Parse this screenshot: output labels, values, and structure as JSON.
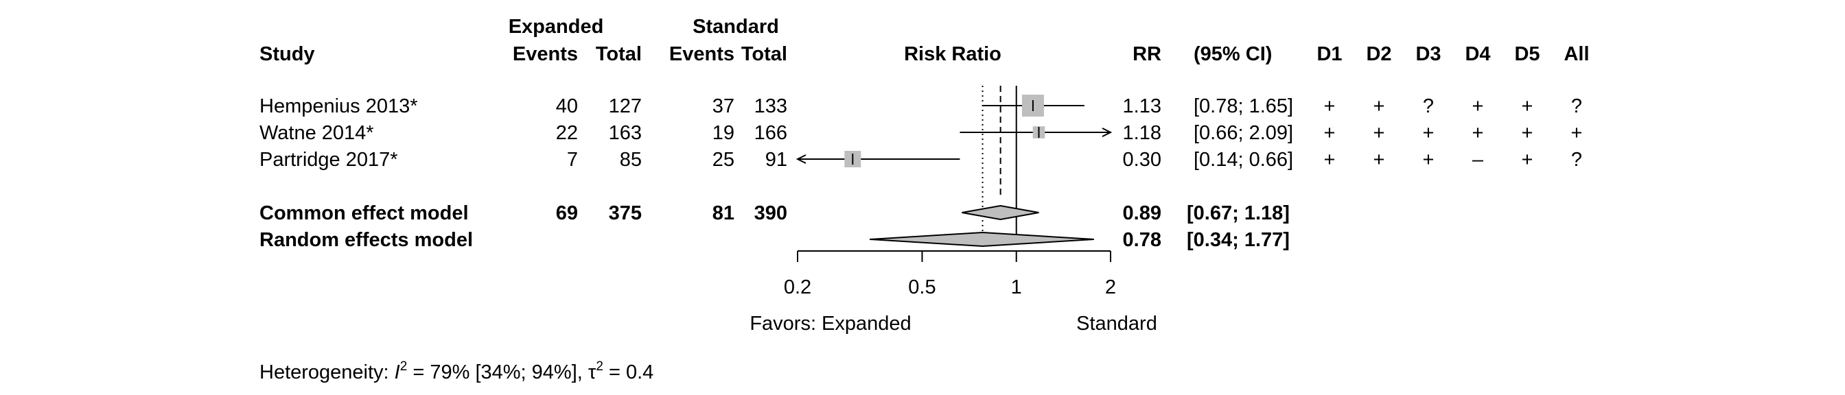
{
  "chart_data": {
    "type": "forest",
    "headers": {
      "study": "Study",
      "group1": "Expanded",
      "group2": "Standard",
      "events": "Events",
      "total": "Total",
      "plot": "Risk Ratio",
      "rr": "RR",
      "ci": "(95% CI)",
      "rob": [
        "D1",
        "D2",
        "D3",
        "D4",
        "D5",
        "All"
      ]
    },
    "studies": [
      {
        "name": "Hempenius 2013*",
        "e1": "40",
        "t1": "127",
        "e2": "37",
        "t2": "133",
        "rr": 1.13,
        "lower": 0.78,
        "upper": 1.65,
        "weight": 1.0,
        "rr_text": "1.13",
        "ci_text": "[0.78; 1.65]",
        "rob": [
          "+",
          "+",
          "?",
          "+",
          "+",
          "?"
        ]
      },
      {
        "name": "Watne 2014*",
        "e1": "22",
        "t1": "163",
        "e2": "19",
        "t2": "166",
        "rr": 1.18,
        "lower": 0.66,
        "upper": 2.09,
        "weight": 0.55,
        "arrow_right": true,
        "rr_text": "1.18",
        "ci_text": "[0.66; 2.09]",
        "rob": [
          "+",
          "+",
          "+",
          "+",
          "+",
          "+"
        ]
      },
      {
        "name": "Partridge 2017*",
        "e1": "7",
        "t1": "85",
        "e2": "25",
        "t2": "91",
        "rr": 0.3,
        "lower": 0.14,
        "upper": 0.66,
        "weight": 0.75,
        "arrow_left": true,
        "rr_text": "0.30",
        "ci_text": "[0.14; 0.66]",
        "rob": [
          "+",
          "+",
          "+",
          "–",
          "+",
          "?"
        ]
      }
    ],
    "pooled": [
      {
        "name": "Common effect model",
        "e1": "69",
        "t1": "375",
        "e2": "81",
        "t2": "390",
        "rr": 0.89,
        "lower": 0.67,
        "upper": 1.18,
        "rr_text": "0.89",
        "ci_text": "[0.67; 1.18]"
      },
      {
        "name": "Random effects model",
        "e1": "",
        "t1": "",
        "e2": "",
        "t2": "",
        "rr": 0.78,
        "lower": 0.34,
        "upper": 1.77,
        "rr_text": "0.78",
        "ci_text": "[0.34; 1.77]"
      }
    ],
    "x_scale": "log",
    "xlim": [
      0.2,
      2
    ],
    "ticks": [
      0.2,
      0.5,
      1,
      2
    ],
    "tick_labels": [
      "0.2",
      "0.5",
      "1",
      "2"
    ],
    "null_line": 1,
    "favors_left": "Favors: Expanded",
    "favors_right": "Standard",
    "heterogeneity": {
      "prefix": "Heterogeneity: ",
      "i2_symbol": "I",
      "i2_text": " = 79% [34%; 94%], ",
      "tau_symbol": "τ",
      "tau_text": " = 0.4",
      "sup": "2"
    },
    "colors": {
      "square": "#bebebe",
      "diamond": "#bebebe",
      "line": "#000000"
    }
  }
}
